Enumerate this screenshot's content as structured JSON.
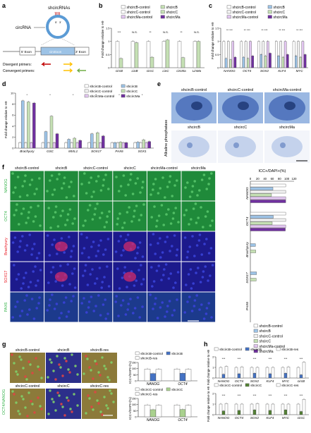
{
  "panel_letters": {
    "a": "a",
    "b": "b",
    "c": "c",
    "d": "d",
    "e": "e",
    "f": "f",
    "g": "g",
    "h": "h"
  },
  "panel_a": {
    "shcircrnas": "shcircRNAs",
    "circrna": "circRNA",
    "bsj_5": "5'",
    "bsj_3": "3'",
    "exon5": "5' Exon",
    "circ_exon": "circExon",
    "exon3": "3' Exon",
    "divergent": "Divergent primers:",
    "convergent": "Convergent primers:",
    "colors": {
      "ring": "#5b9bd5",
      "circexon": "#9dc3e6",
      "div_arrow": "#c00000",
      "conv_arrow1": "#70ad47",
      "conv_arrow2": "#ffc000"
    }
  },
  "panel_b": {
    "ylabel": "Fold change relative to H9",
    "legend": [
      "shcircB-control",
      "shcircB",
      "shcircC-control",
      "shcircC",
      "shcircMa-control",
      "shcircMa"
    ],
    "categories": [
      "circB",
      "LinB",
      "circC",
      "LinC",
      "circMa",
      "LinMa"
    ],
    "sig": [
      "***",
      "N.S.",
      "**",
      "N.S.",
      "**",
      "N.S."
    ]
  },
  "panel_c": {
    "ylabel": "Fold change relative to H9",
    "legend": [
      "shcircB-control",
      "shcircB",
      "shcircC-control",
      "shcircC",
      "shcircMa-control",
      "shcircMa"
    ],
    "categories": [
      "NANOG",
      "OCT4",
      "SOX2",
      "KLF4",
      "MYC"
    ]
  },
  "panel_d": {
    "ylabel": "Fold change relative to H9",
    "legend": [
      "shcircB-control",
      "shcircB",
      "shcircC-control",
      "shcircC",
      "shcircMa-control",
      "shcircMa"
    ],
    "categories": [
      "Brachyury",
      "GSC",
      "MIXL1",
      "SOX17",
      "PAX6",
      "SOX1"
    ]
  },
  "panel_e": {
    "side_label": "Alkaline phosphatase",
    "top_labels": [
      "shcircB-control",
      "shcircC-control",
      "shcircMa-control"
    ],
    "bottom_labels": [
      "shcircB",
      "shcircC",
      "shcircMa"
    ]
  },
  "panel_f": {
    "columns": [
      "shcircB-control",
      "shcircB",
      "shcircC-control",
      "shcircC",
      "shcircMa-control",
      "shcircMa"
    ],
    "rows": [
      "NANOG",
      "OCT4",
      "Brachyury",
      "SOX17",
      "PAX6"
    ],
    "row_colors": [
      "#35b34a",
      "#35b34a",
      "#e8141f",
      "#e8141f",
      "#35b34a"
    ],
    "axis_title": "ICC+/DAPI+(%)",
    "ticks": [
      "0",
      "20",
      "40",
      "60",
      "80",
      "100",
      "120"
    ],
    "groups": [
      "NANOG",
      "OCT4",
      "Brachyury",
      "SOX17",
      "PAX6"
    ],
    "legend": [
      "shcircB-control",
      "shcircB",
      "shcircC-control",
      "shcircC",
      "shcircMa-control",
      "shcircMa"
    ]
  },
  "panel_g": {
    "side_top": "OCT4",
    "side_bottom": "NANOG",
    "top_labels": [
      "shcircB-control",
      "shcircB",
      "shcircB-res"
    ],
    "bottom_labels": [
      "shcircC-control",
      "shcircC",
      "shcircC-res"
    ],
    "legend_top": [
      "shcircB-control",
      "shcircB",
      "shcircB-res"
    ],
    "legend_bottom": [
      "shcircC-control",
      "shcircC",
      "shcircC-res"
    ],
    "ylabel": "ICC+/DAPI+(%)",
    "categories": [
      "NANOG",
      "OCT4"
    ],
    "ticks": [
      "0",
      "50",
      "100",
      "150"
    ]
  },
  "panel_h": {
    "legend_top": [
      "shcircB-control",
      "shcircB",
      "shcircB-res"
    ],
    "legend_bottom": [
      "shcircC-control",
      "shcircC",
      "shcircC-res"
    ],
    "ylabel": "Fold change relative to H9",
    "categories_top": [
      "NANOG",
      "OCT4",
      "SOX2",
      "KLF4",
      "MYC",
      "circB"
    ],
    "categories_bottom": [
      "NANOG",
      "OCT4",
      "SOX2",
      "KLF4",
      "MYC",
      "circC"
    ]
  },
  "chart_data": [
    {
      "panel": "b",
      "type": "bar",
      "categories": [
        "circB",
        "LinB",
        "circC",
        "LinC",
        "circMa",
        "LinMa"
      ],
      "ylim": [
        0,
        1.5
      ],
      "yticks": [
        0,
        0.5,
        1.0,
        1.5
      ],
      "series": [
        {
          "name": "control",
          "values": [
            1.0,
            1.0,
            1.0,
            1.0,
            1.0,
            1.0
          ]
        },
        {
          "name": "knockdown",
          "values": [
            0.35,
            0.95,
            0.4,
            1.05,
            0.38,
            1.0
          ]
        }
      ]
    },
    {
      "panel": "c",
      "type": "bar",
      "categories": [
        "NANOG",
        "OCT4",
        "SOX2",
        "KLF4",
        "MYC"
      ],
      "ylim": [
        0,
        1.5
      ],
      "yticks": [
        0,
        0.5,
        1.0,
        1.5
      ],
      "series": [
        {
          "name": "shcircB-control",
          "values": [
            1.0,
            1.0,
            1.0,
            1.0,
            1.0
          ]
        },
        {
          "name": "shcircB",
          "values": [
            0.35,
            0.4,
            0.5,
            0.45,
            0.45
          ]
        },
        {
          "name": "shcircC-control",
          "values": [
            1.0,
            1.0,
            1.0,
            1.0,
            1.0
          ]
        },
        {
          "name": "shcircC",
          "values": [
            0.3,
            0.35,
            0.45,
            0.4,
            0.4
          ]
        },
        {
          "name": "shcircMa-control",
          "values": [
            1.0,
            1.0,
            1.0,
            1.0,
            1.0
          ]
        },
        {
          "name": "shcircMa",
          "values": [
            0.4,
            0.45,
            0.55,
            0.5,
            0.5
          ]
        }
      ]
    },
    {
      "panel": "d",
      "type": "bar",
      "categories": [
        "Brachyury",
        "GSC",
        "MIXL1",
        "SOX17",
        "PAX6",
        "SOX1"
      ],
      "ylim": [
        0,
        10
      ],
      "yticks": [
        0,
        2,
        4,
        6,
        8,
        10
      ],
      "series": [
        {
          "name": "shcircB-control",
          "values": [
            1.0,
            1.0,
            1.0,
            1.0,
            1.0,
            1.0
          ]
        },
        {
          "name": "shcircB",
          "values": [
            8.6,
            3.0,
            1.6,
            2.6,
            1.0,
            1.1
          ]
        },
        {
          "name": "shcircC-control",
          "values": [
            1.0,
            1.0,
            1.0,
            1.0,
            1.0,
            1.0
          ]
        },
        {
          "name": "shcircC",
          "values": [
            8.4,
            5.8,
            1.8,
            2.8,
            1.1,
            1.5
          ]
        },
        {
          "name": "shcircMa-control",
          "values": [
            1.0,
            1.0,
            1.0,
            1.0,
            1.0,
            1.0
          ]
        },
        {
          "name": "shcircMa",
          "values": [
            8.2,
            2.6,
            1.4,
            2.2,
            1.0,
            1.2
          ]
        }
      ]
    },
    {
      "panel": "f",
      "type": "bar",
      "categories": [
        "NANOG",
        "OCT4",
        "Brachyury",
        "SOX17",
        "PAX6"
      ],
      "xlim": [
        0,
        120
      ],
      "series": [
        {
          "name": "shcircB-control",
          "values": [
            97,
            97,
            0,
            0,
            0
          ]
        },
        {
          "name": "shcircB",
          "values": [
            62,
            63,
            14,
            17,
            0
          ]
        },
        {
          "name": "shcircC-control",
          "values": [
            97,
            97,
            0,
            0,
            0
          ]
        },
        {
          "name": "shcircC",
          "values": [
            58,
            60,
            15,
            16,
            0
          ]
        },
        {
          "name": "shcircMa-control",
          "values": [
            97,
            97,
            0,
            0,
            0
          ]
        },
        {
          "name": "shcircMa",
          "values": [
            97,
            96,
            0,
            0,
            0
          ]
        }
      ]
    },
    {
      "panel": "g-top",
      "type": "bar",
      "categories": [
        "NANOG",
        "OCT4"
      ],
      "ylim": [
        0,
        150
      ],
      "series": [
        {
          "name": "shcircB-control",
          "values": [
            97,
            97
          ]
        },
        {
          "name": "shcircB",
          "values": [
            60,
            62
          ]
        },
        {
          "name": "shcircB-res",
          "values": [
            95,
            95
          ]
        }
      ]
    },
    {
      "panel": "g-bottom",
      "type": "bar",
      "categories": [
        "NANOG",
        "OCT4"
      ],
      "ylim": [
        0,
        150
      ],
      "series": [
        {
          "name": "shcircC-control",
          "values": [
            97,
            97
          ]
        },
        {
          "name": "shcircC",
          "values": [
            58,
            60
          ]
        },
        {
          "name": "shcircC-res",
          "values": [
            95,
            94
          ]
        }
      ]
    },
    {
      "panel": "h-top",
      "type": "bar",
      "categories": [
        "NANOG",
        "OCT4",
        "SOX2",
        "KLF4",
        "MYC",
        "circB"
      ],
      "ylim": [
        0,
        2
      ],
      "series": [
        {
          "name": "shcircB-control",
          "values": [
            1.0,
            1.0,
            1.0,
            1.0,
            1.0,
            1.0
          ]
        },
        {
          "name": "shcircB",
          "values": [
            0.35,
            0.4,
            0.45,
            0.4,
            0.45,
            0.3
          ]
        },
        {
          "name": "shcircB-res",
          "values": [
            1.1,
            1.05,
            1.0,
            1.0,
            1.05,
            1.5
          ]
        }
      ]
    },
    {
      "panel": "h-bottom",
      "type": "bar",
      "categories": [
        "NANOG",
        "OCT4",
        "SOX2",
        "KLF4",
        "MYC",
        "circC"
      ],
      "ylim": [
        0,
        2
      ],
      "series": [
        {
          "name": "shcircC-control",
          "values": [
            1.0,
            1.0,
            1.0,
            1.0,
            1.0,
            1.0
          ]
        },
        {
          "name": "shcircC",
          "values": [
            0.35,
            0.4,
            0.45,
            0.4,
            0.45,
            0.3
          ]
        },
        {
          "name": "shcircC-res",
          "values": [
            1.05,
            1.0,
            1.05,
            1.0,
            1.0,
            1.45
          ]
        }
      ]
    }
  ],
  "series_colors": {
    "b": [
      "#ffffff",
      "#c5e0b4"
    ],
    "six": [
      "#ffffff",
      "#9dc3e6",
      "#f2f2f2",
      "#c5e0b4",
      "#e2c6f0",
      "#7030a0"
    ],
    "g_top": [
      "#ffffff",
      "#4472c4",
      "#ffffff"
    ],
    "g_bottom": [
      "#ffffff",
      "#a9d18e",
      "#ffffff"
    ],
    "h_top": [
      "#ffffff",
      "#4472c4",
      "#ffffff"
    ],
    "h_bottom": [
      "#ffffff",
      "#548235",
      "#ffffff"
    ]
  }
}
